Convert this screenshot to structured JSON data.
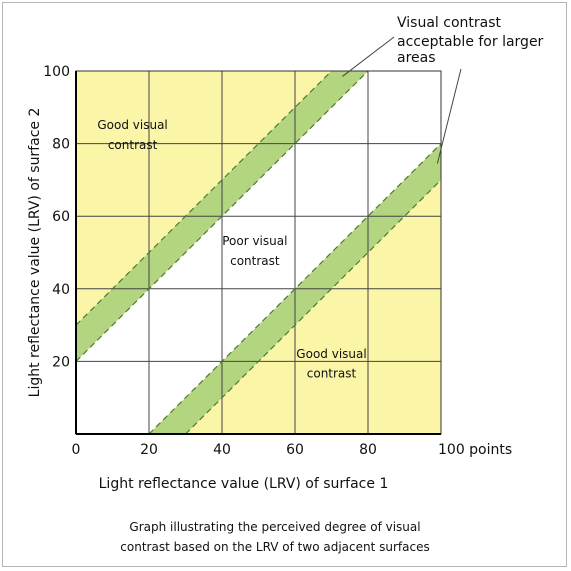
{
  "chart_data": {
    "type": "area",
    "xlim": [
      0,
      100
    ],
    "ylim": [
      0,
      100
    ],
    "x_ticks": [
      "0",
      "20",
      "40",
      "60",
      "80",
      "100 points"
    ],
    "y_ticks": [
      "20",
      "40",
      "60",
      "80",
      "100"
    ],
    "xlabel": "Light reflectance value (LRV) of surface 1",
    "ylabel": "Light reflectance value (LRV) of surface 2",
    "grid": true,
    "regions": [
      {
        "name": "good-upper",
        "label_lines": [
          "Good visual",
          "contrast"
        ],
        "condition": "LRV2 - LRV1 >= 20"
      },
      {
        "name": "poor",
        "label_lines": [
          "Poor visual",
          "contrast"
        ],
        "condition": "|LRV2 - LRV1| < 20"
      },
      {
        "name": "good-lower",
        "label_lines": [
          "Good visual",
          "contrast"
        ],
        "condition": "LRV1 - LRV2 >= 20"
      }
    ],
    "bands": [
      {
        "name": "upper-band",
        "difference_range": [
          20,
          30
        ]
      },
      {
        "name": "lower-band",
        "difference_range": [
          -30,
          -20
        ]
      }
    ],
    "annotation": {
      "lines": [
        "Visual contrast",
        "acceptable for larger",
        "areas"
      ]
    },
    "colors": {
      "good": "#fbf5a8",
      "band": "#b3d57f",
      "band_edge": "#4a7a3a",
      "grid": "#444444",
      "axis": "#000000"
    }
  },
  "caption": [
    "Graph illustrating the perceived degree of visual",
    "contrast based on the LRV of two adjacent surfaces"
  ]
}
